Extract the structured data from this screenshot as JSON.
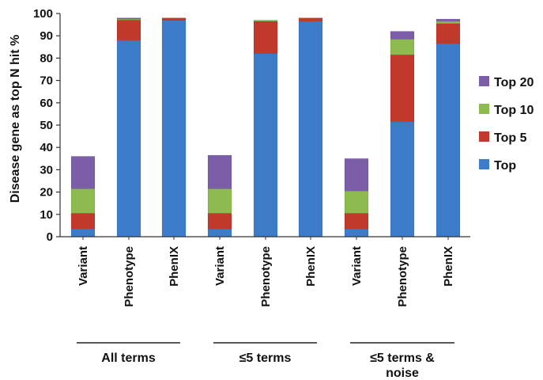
{
  "chart_data": {
    "type": "bar",
    "stacked": true,
    "ylabel": "Disease gene as top N hit %",
    "xlabel": "",
    "ylim": [
      0,
      100
    ],
    "yticks": [
      0,
      10,
      20,
      30,
      40,
      50,
      60,
      70,
      80,
      90,
      100
    ],
    "categories": [
      "Variant",
      "Phenotype",
      "PhenIX",
      "Variant",
      "Phenotype",
      "PhenIX",
      "Variant",
      "Phenotype",
      "PhenIX"
    ],
    "groups": [
      {
        "label": "All terms",
        "categories": [
          0,
          1,
          2
        ]
      },
      {
        "label": "≤5 terms",
        "categories": [
          3,
          4,
          5
        ]
      },
      {
        "label": "≤5 terms & noise",
        "categories": [
          6,
          7,
          8
        ]
      }
    ],
    "series": [
      {
        "name": "Top",
        "color": "#3d7cc9",
        "values": [
          3.5,
          88,
          97,
          3.5,
          82,
          96.5,
          3.5,
          51.5,
          86.5
        ]
      },
      {
        "name": "Top 5",
        "color": "#c0392b",
        "values": [
          7,
          9,
          1,
          7,
          14.5,
          1.5,
          7,
          30,
          9
        ]
      },
      {
        "name": "Top 10",
        "color": "#8dbb4f",
        "values": [
          11,
          0.5,
          0,
          11,
          0.5,
          0,
          10,
          7,
          1
        ]
      },
      {
        "name": "Top 20",
        "color": "#7b5ea7",
        "values": [
          14.5,
          0.5,
          0,
          15,
          0,
          0,
          14.5,
          3.5,
          1
        ]
      }
    ],
    "legend": {
      "placement": "right",
      "order": [
        "Top 20",
        "Top 10",
        "Top 5",
        "Top"
      ]
    },
    "grid": false
  }
}
